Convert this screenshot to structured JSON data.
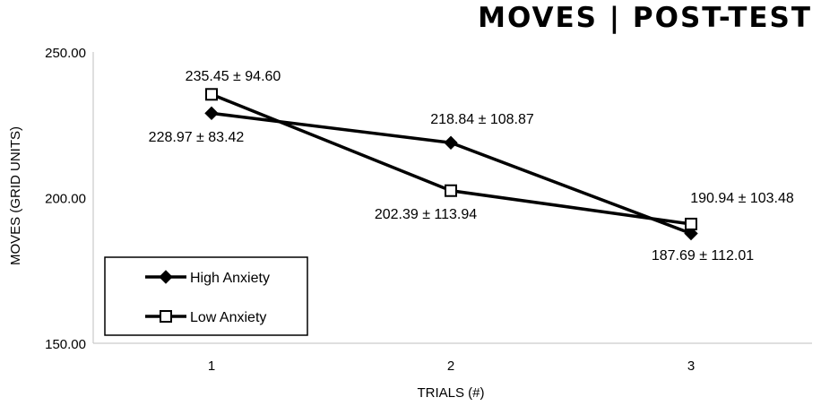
{
  "chart_data": {
    "type": "line",
    "title": "MOVES | POST-TEST",
    "xlabel": "TRIALS (#)",
    "ylabel": "MOVES (GRID UNITS)",
    "categories": [
      "1",
      "2",
      "3"
    ],
    "ylim": [
      150,
      250
    ],
    "yticks": [
      "250.00",
      "200.00",
      "150.00"
    ],
    "grid": false,
    "legend_position": "bottom-left",
    "series": [
      {
        "name": "High Anxiety",
        "marker": "diamond-filled",
        "color": "#000000",
        "values": [
          228.97,
          218.84,
          187.69
        ],
        "labels": [
          "228.97 ± 83.42",
          "218.84 ± 108.87",
          "187.69 ± 112.01"
        ]
      },
      {
        "name": "Low Anxiety",
        "marker": "square-open",
        "color": "#000000",
        "values": [
          235.45,
          202.39,
          190.94
        ],
        "labels": [
          "235.45 ± 94.60",
          "202.39 ± 113.94",
          "190.94 ± 103.48"
        ]
      }
    ]
  }
}
